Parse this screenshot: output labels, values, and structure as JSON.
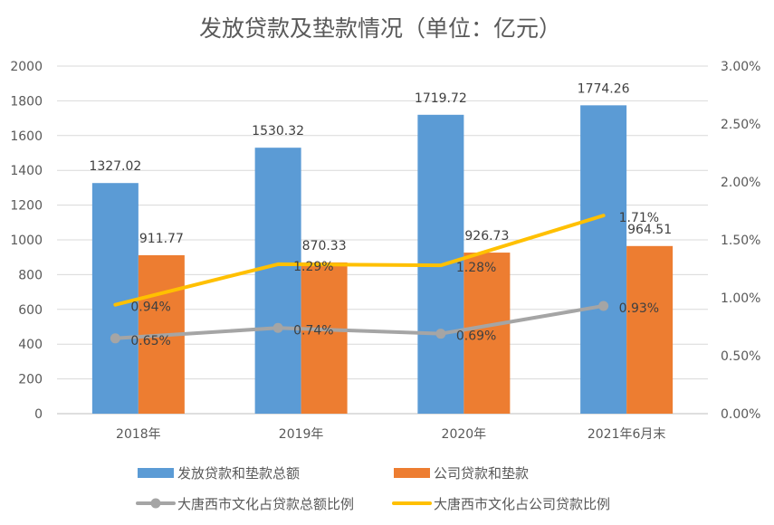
{
  "chart_data": {
    "type": "bar",
    "title": "发放贷款及垫款情况（单位：亿元）",
    "categories": [
      "2018年",
      "2019年",
      "2020年",
      "2021年6月末"
    ],
    "ylim": [
      0,
      2000
    ],
    "yticks": [
      "0",
      "200",
      "400",
      "600",
      "800",
      "1000",
      "1200",
      "1400",
      "1600",
      "1800",
      "2000"
    ],
    "y2lim": [
      0,
      3.0
    ],
    "y2ticks": [
      "0.00%",
      "0.50%",
      "1.00%",
      "1.50%",
      "2.00%",
      "2.50%",
      "3.00%"
    ],
    "grid": true,
    "legend_position": "bottom",
    "series": [
      {
        "name": "发放贷款和垫款总额",
        "type": "bar",
        "axis": "left",
        "color": "#5B9BD5",
        "values": [
          1327.02,
          1530.32,
          1719.72,
          1774.26
        ],
        "labels": [
          "1327.02",
          "1530.32",
          "1719.72",
          "1774.26"
        ]
      },
      {
        "name": "公司贷款和垫款",
        "type": "bar",
        "axis": "left",
        "color": "#ED7D31",
        "values": [
          911.77,
          870.33,
          926.73,
          964.51
        ],
        "labels": [
          "911.77",
          "870.33",
          "926.73",
          "964.51"
        ]
      },
      {
        "name": "大唐西市文化占贷款总额比例",
        "type": "line",
        "axis": "right",
        "color": "#A5A5A5",
        "marker": true,
        "values": [
          0.65,
          0.74,
          0.69,
          0.93
        ],
        "labels": [
          "0.65%",
          "0.74%",
          "0.69%",
          "0.93%"
        ]
      },
      {
        "name": "大唐西市文化占公司贷款比例",
        "type": "line",
        "axis": "right",
        "color": "#FFC000",
        "marker": false,
        "values": [
          0.94,
          1.29,
          1.28,
          1.71
        ],
        "labels": [
          "0.94%",
          "1.29%",
          "1.28%",
          "1.71%"
        ]
      }
    ]
  }
}
